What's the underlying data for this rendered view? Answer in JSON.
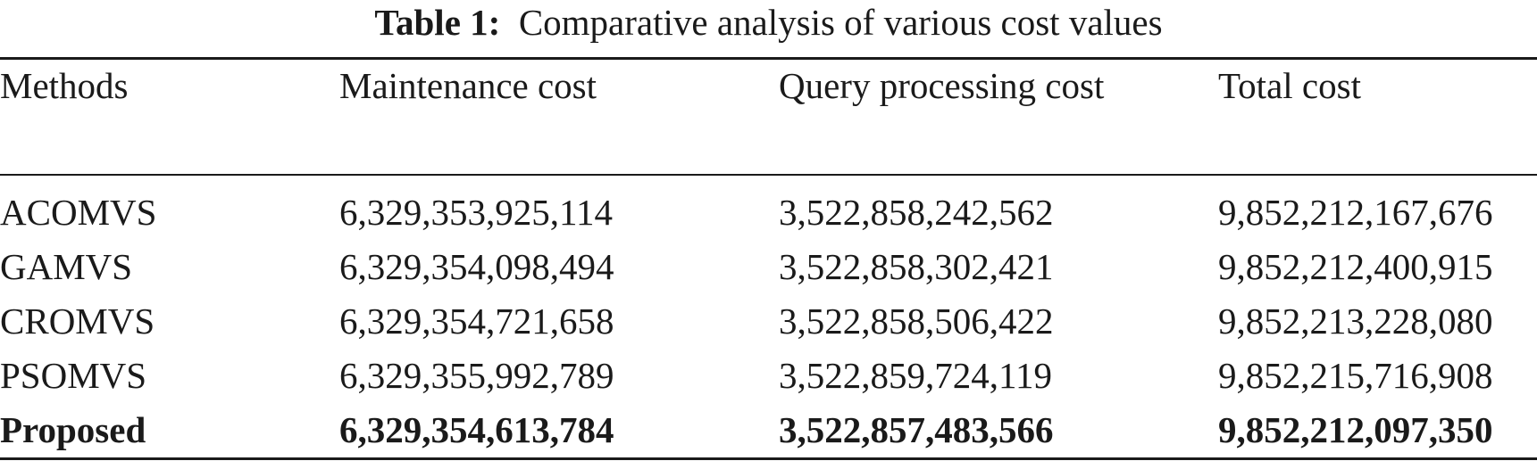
{
  "caption": {
    "label": "Table 1:",
    "text": "Comparative analysis of various cost values"
  },
  "table": {
    "columns": [
      "Methods",
      "Maintenance cost",
      "Query processing cost",
      "Total cost"
    ],
    "rows": [
      [
        "ACOMVS",
        "6,329,353,925,114",
        "3,522,858,242,562",
        "9,852,212,167,676"
      ],
      [
        "GAMVS",
        "6,329,354,098,494",
        "3,522,858,302,421",
        "9,852,212,400,915"
      ],
      [
        "CROMVS",
        "6,329,354,721,658",
        "3,522,858,506,422",
        "9,852,213,228,080"
      ],
      [
        "PSOMVS",
        "6,329,355,992,789",
        "3,522,859,724,119",
        "9,852,215,716,908"
      ],
      [
        "Proposed",
        "6,329,354,613,784",
        "3,522,857,483,566",
        "9,852,212,097,350"
      ]
    ],
    "highlighted_row": "Proposed"
  }
}
